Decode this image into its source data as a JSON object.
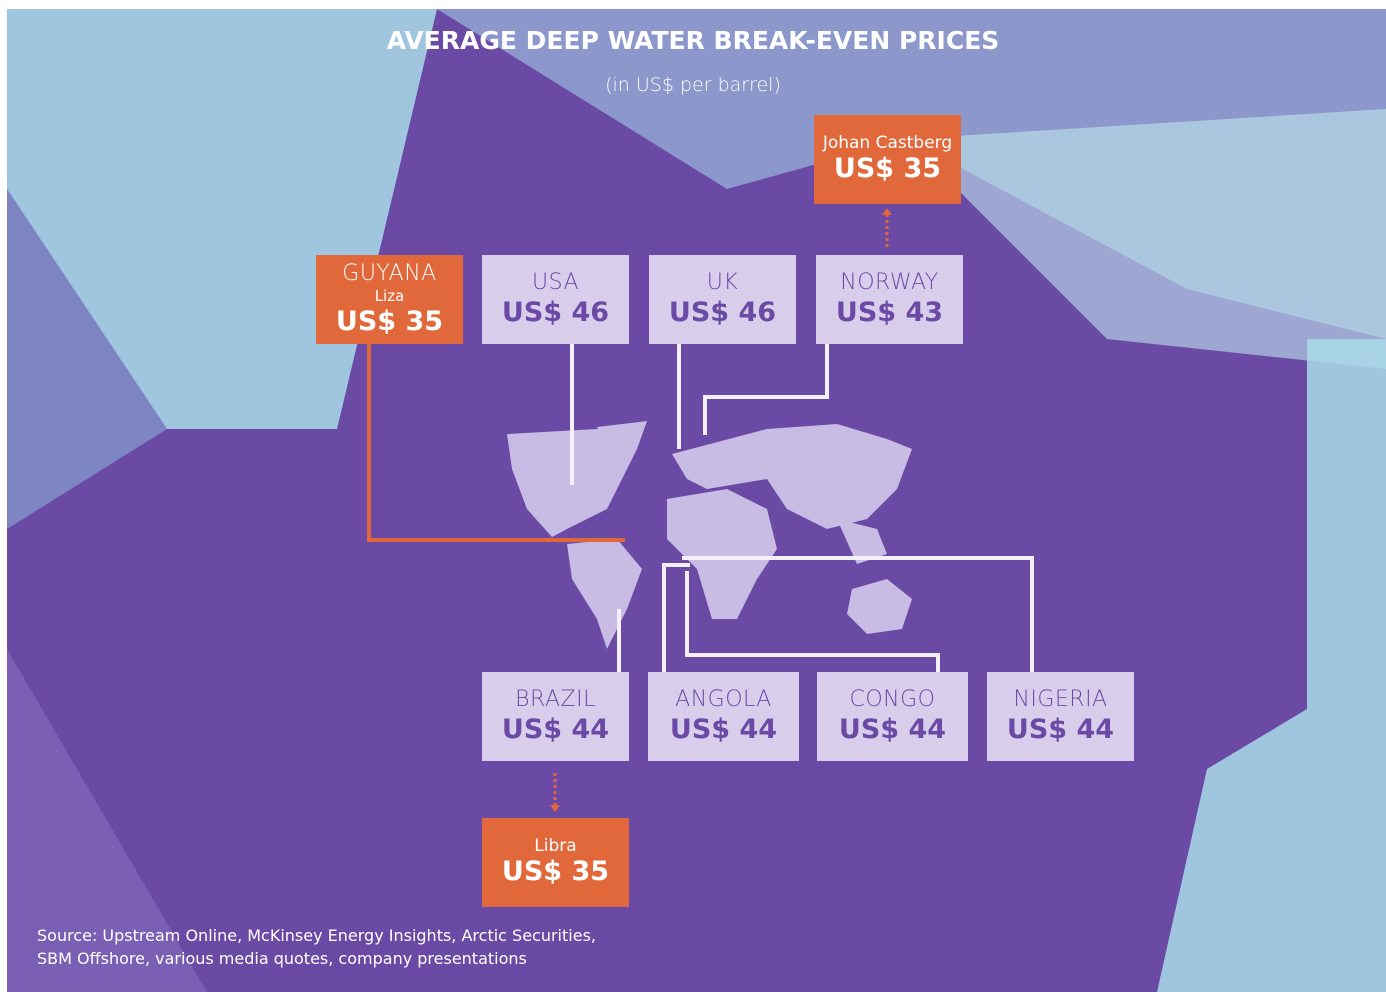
{
  "header": {
    "title": "AVERAGE DEEP WATER BREAK-EVEN PRICES",
    "subtitle": "(in US$ per barrel)"
  },
  "boxes": [
    {
      "sublabel": "Johan  Castberg",
      "price": "US$ 35"
    },
    {
      "label": "GUYANA",
      "sublabel": "Liza",
      "price": "US$ 35"
    },
    {
      "label": "USA",
      "price": "US$ 46"
    },
    {
      "label": "UK",
      "price": "US$ 46"
    },
    {
      "label": "NORWAY",
      "price": "US$ 43"
    },
    {
      "label": "BRAZIL",
      "price": "US$ 44"
    },
    {
      "label": "ANGOLA",
      "price": "US$ 44"
    },
    {
      "label": "CONGO",
      "price": "US$ 44"
    },
    {
      "label": "NIGERIA",
      "price": "US$ 44"
    },
    {
      "sublabel": "Libra",
      "price": "US$ 35"
    }
  ],
  "source": [
    "Source: Upstream Online, McKinsey Energy Insights, Arctic Securities,",
    "SBM Offshore, various media quotes, company presentations"
  ]
}
